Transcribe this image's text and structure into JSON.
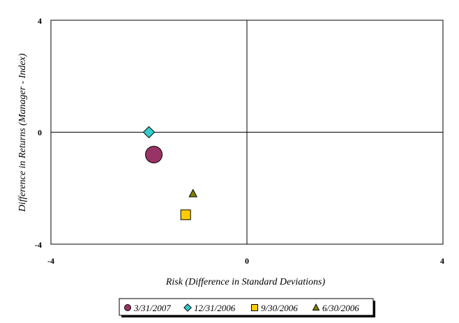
{
  "chart_data": {
    "type": "scatter",
    "xlabel": "Risk (Difference in Standard Deviations)",
    "ylabel": "Difference in Returns (Manager - Index)",
    "xlim": [
      -4,
      4
    ],
    "ylim": [
      -4,
      4
    ],
    "x_ticks": [
      "-4",
      "0",
      "4"
    ],
    "y_ticks": [
      "-4",
      "0",
      "4"
    ],
    "grid": false,
    "legend_position": "bottom",
    "series": [
      {
        "name": "3/31/2007",
        "marker": "circle",
        "color": "#993366",
        "size": "large",
        "points": [
          {
            "x": -1.9,
            "y": -0.8
          }
        ]
      },
      {
        "name": "12/31/2006",
        "marker": "diamond",
        "color": "#33CCCC",
        "size": "medium",
        "points": [
          {
            "x": -2.0,
            "y": 0.0
          }
        ]
      },
      {
        "name": "9/30/2006",
        "marker": "square",
        "color": "#FFCC00",
        "size": "medium",
        "points": [
          {
            "x": -1.25,
            "y": -2.95
          }
        ]
      },
      {
        "name": "6/30/2006",
        "marker": "triangle",
        "color": "#808000",
        "size": "small",
        "points": [
          {
            "x": -1.1,
            "y": -2.2
          }
        ]
      }
    ]
  }
}
